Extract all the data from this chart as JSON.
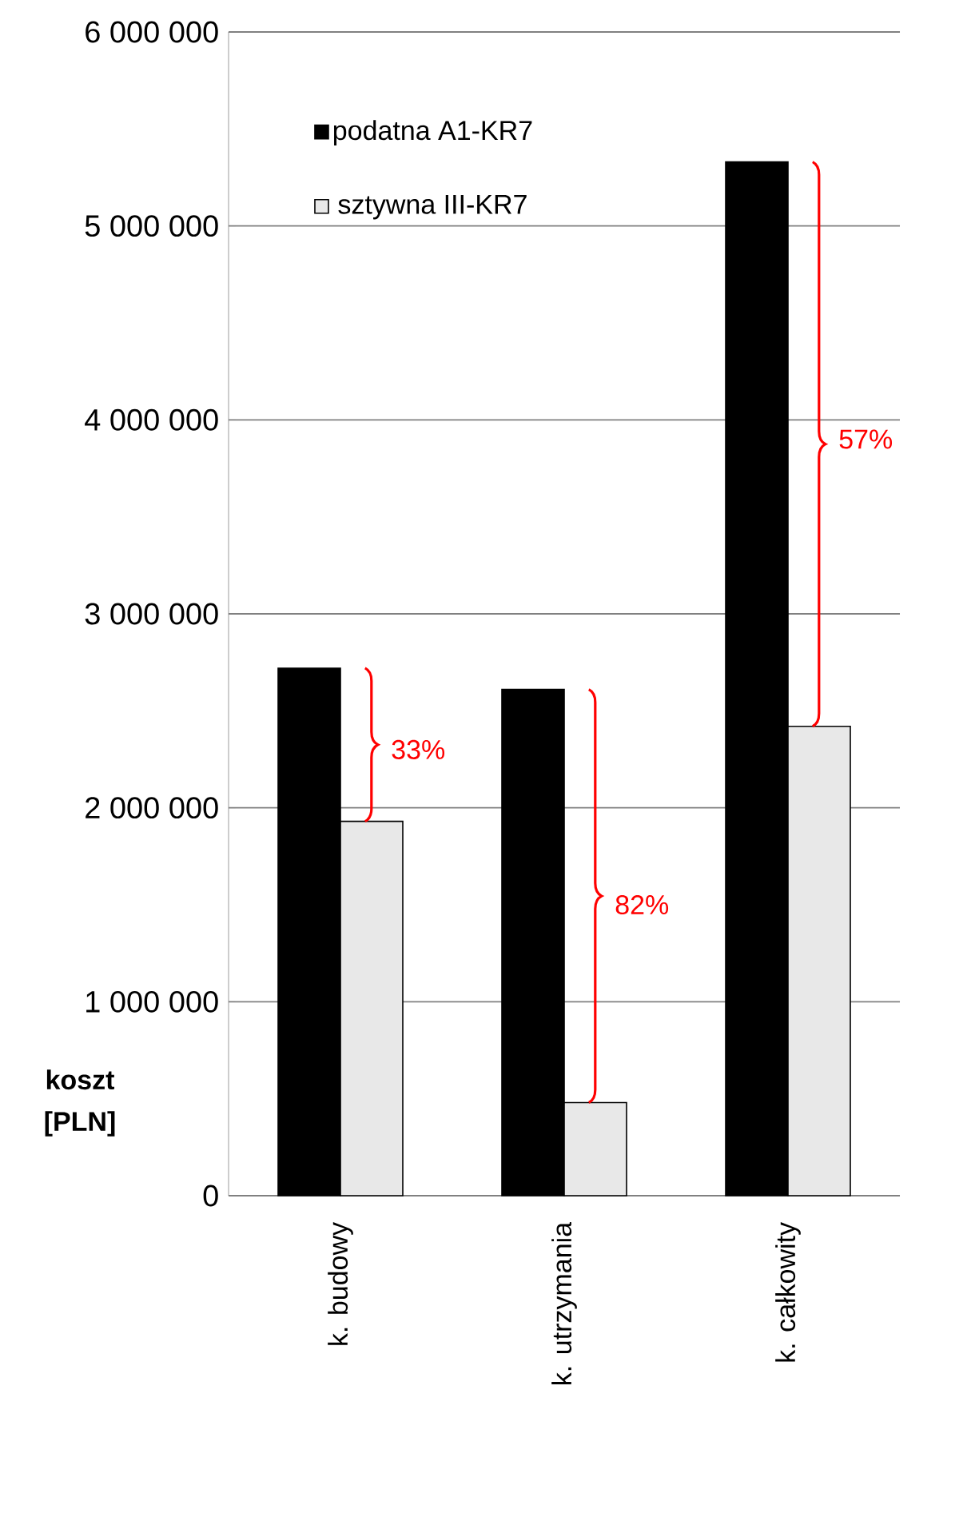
{
  "chart_data": {
    "type": "bar",
    "ylabel": "koszt [PLN]",
    "categories": [
      "k. budowy",
      "k. utrzymania",
      "k. całkowity"
    ],
    "series": [
      {
        "name": "podatna A1-KR7",
        "color": "#000000",
        "values": [
          2720000,
          2610000,
          5330000
        ]
      },
      {
        "name": "sztywna III-KR7",
        "color": "#e8e8e8",
        "values": [
          1930000,
          480000,
          2420000
        ]
      }
    ],
    "ylim": [
      0,
      6000000
    ],
    "yticks": [
      {
        "value": 0,
        "label": "0"
      },
      {
        "value": 1000000,
        "label": "1 000 000"
      },
      {
        "value": 2000000,
        "label": "2 000 000"
      },
      {
        "value": 3000000,
        "label": "3 000 000"
      },
      {
        "value": 4000000,
        "label": "4 000 000"
      },
      {
        "value": 5000000,
        "label": "5 000 000"
      },
      {
        "value": 6000000,
        "label": "6 000 000"
      }
    ],
    "grid": "y",
    "legend": "top left",
    "annotations": [
      {
        "text": "33%",
        "x": "k. budowy",
        "y": 2300000
      },
      {
        "text": "82%",
        "x": "k. utrzymania",
        "y": 1500000
      },
      {
        "text": "57%",
        "x": "k. całkowity",
        "y": 3900000
      }
    ]
  }
}
